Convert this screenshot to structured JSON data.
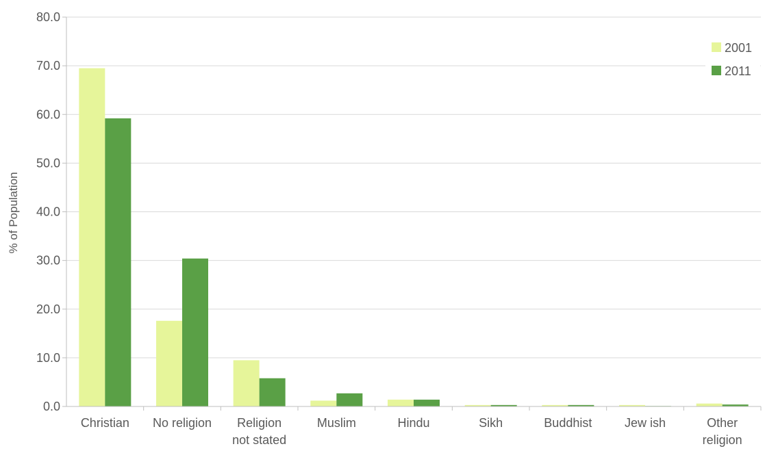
{
  "chart_data": {
    "type": "bar",
    "title": "",
    "xlabel": "",
    "ylabel": "% of Population",
    "ylim": [
      0,
      80
    ],
    "yticks": [
      "0.0",
      "10.0",
      "20.0",
      "30.0",
      "40.0",
      "50.0",
      "60.0",
      "70.0",
      "80.0"
    ],
    "categories": [
      [
        "Christian"
      ],
      [
        "No religion"
      ],
      [
        "Religion",
        "not stated"
      ],
      [
        "Muslim"
      ],
      [
        "Hindu"
      ],
      [
        "Sikh"
      ],
      [
        "Buddhist"
      ],
      [
        "Jew ish"
      ],
      [
        "Other",
        "religion"
      ]
    ],
    "series": [
      {
        "name": "2001",
        "color": "#e6f59a",
        "values": [
          69.5,
          17.6,
          9.5,
          1.2,
          1.4,
          0.3,
          0.3,
          0.3,
          0.6
        ]
      },
      {
        "name": "2011",
        "color": "#5aa046",
        "values": [
          59.2,
          30.4,
          5.8,
          2.7,
          1.4,
          0.3,
          0.3,
          0.1,
          0.4
        ]
      }
    ],
    "grid": true,
    "legend_position": "top-right"
  }
}
